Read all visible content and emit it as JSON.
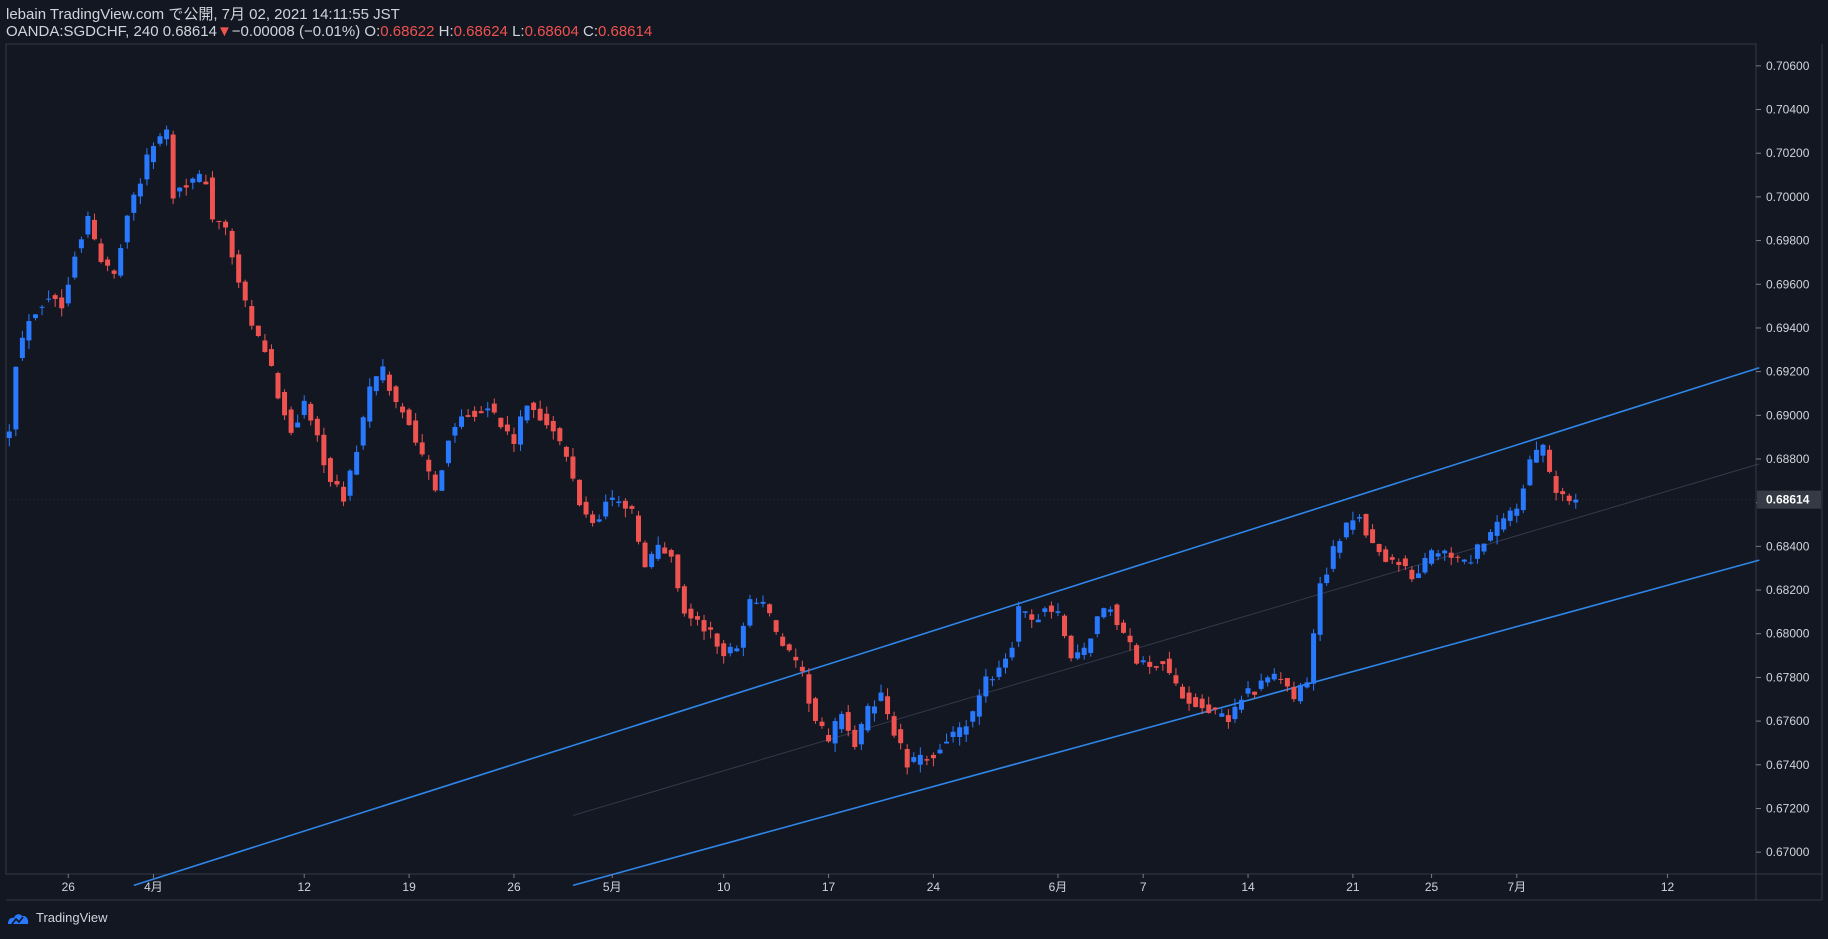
{
  "header": {
    "publisher": "lebain TradingView.com で公開, 7月 02, 2021 14:11:55 JST",
    "symbol_line": "OANDA:SGDCHF, 240 0.68614",
    "change_arrow": "▼",
    "change": "−0.00008 (−0.01%)",
    "o_label": "O:",
    "o_value": "0.68622",
    "h_label": "H:",
    "h_value": "0.68624",
    "l_label": "L:",
    "l_value": "0.68604",
    "c_label": "C:",
    "c_value": "0.68614"
  },
  "footer": {
    "brand": "TradingView"
  },
  "colors": {
    "background": "#131722",
    "up": "#2979ff",
    "down": "#ef5350",
    "channel": "#2f86e8",
    "text": "#d1d4dc",
    "grid_border": "#363a45"
  },
  "chart_data": {
    "type": "candlestick",
    "symbol": "OANDA:SGDCHF",
    "timeframe": "240",
    "ylim": [
      0.669,
      0.707
    ],
    "y_ticks": [
      0.706,
      0.704,
      0.702,
      0.7,
      0.698,
      0.696,
      0.694,
      0.692,
      0.69,
      0.688,
      0.686,
      0.684,
      0.682,
      0.68,
      0.678,
      0.676,
      0.674,
      0.672,
      0.67
    ],
    "y_tick_labels": [
      "0.70600",
      "0.70400",
      "0.70200",
      "0.70000",
      "0.69800",
      "0.69600",
      "0.69400",
      "0.69200",
      "0.69000",
      "0.68800",
      "0.68600",
      "0.68400",
      "0.68200",
      "0.68000",
      "0.67800",
      "0.67600",
      "0.67400",
      "0.67200",
      "0.67000"
    ],
    "last_price_label": "0.68614",
    "last_price": 0.68614,
    "x_ticks": [
      {
        "label": "26",
        "bar": 9
      },
      {
        "label": "4月",
        "bar": 22
      },
      {
        "label": "12",
        "bar": 45
      },
      {
        "label": "19",
        "bar": 61
      },
      {
        "label": "26",
        "bar": 77
      },
      {
        "label": "5月",
        "bar": 92
      },
      {
        "label": "10",
        "bar": 109
      },
      {
        "label": "17",
        "bar": 125
      },
      {
        "label": "24",
        "bar": 141
      },
      {
        "label": "6月",
        "bar": 160
      },
      {
        "label": "7",
        "bar": 173
      },
      {
        "label": "14",
        "bar": 189
      },
      {
        "label": "21",
        "bar": 205
      },
      {
        "label": "25",
        "bar": 217
      },
      {
        "label": "7月",
        "bar": 230
      },
      {
        "label": "12",
        "bar": 253
      }
    ],
    "bars_total": 267,
    "anchors": [
      [
        0,
        0.6895
      ],
      [
        1,
        0.6925
      ],
      [
        3,
        0.6945
      ],
      [
        6,
        0.6955
      ],
      [
        8,
        0.695
      ],
      [
        10,
        0.6975
      ],
      [
        12,
        0.699
      ],
      [
        14,
        0.697
      ],
      [
        16,
        0.6965
      ],
      [
        18,
        0.6993
      ],
      [
        20,
        0.7008
      ],
      [
        22,
        0.7025
      ],
      [
        24,
        0.703
      ],
      [
        25,
        0.7002
      ],
      [
        27,
        0.7007
      ],
      [
        30,
        0.7008
      ],
      [
        31,
        0.699
      ],
      [
        33,
        0.6985
      ],
      [
        35,
        0.696
      ],
      [
        37,
        0.694
      ],
      [
        39,
        0.693
      ],
      [
        41,
        0.691
      ],
      [
        43,
        0.6893
      ],
      [
        45,
        0.6905
      ],
      [
        47,
        0.689
      ],
      [
        49,
        0.687
      ],
      [
        51,
        0.6862
      ],
      [
        53,
        0.6885
      ],
      [
        55,
        0.6912
      ],
      [
        57,
        0.692
      ],
      [
        59,
        0.6905
      ],
      [
        61,
        0.6898
      ],
      [
        63,
        0.688
      ],
      [
        65,
        0.6865
      ],
      [
        67,
        0.689
      ],
      [
        69,
        0.69
      ],
      [
        71,
        0.6902
      ],
      [
        73,
        0.6905
      ],
      [
        75,
        0.6895
      ],
      [
        77,
        0.6888
      ],
      [
        79,
        0.6905
      ],
      [
        81,
        0.69
      ],
      [
        83,
        0.6893
      ],
      [
        85,
        0.688
      ],
      [
        87,
        0.686
      ],
      [
        89,
        0.685
      ],
      [
        91,
        0.686
      ],
      [
        93,
        0.6862
      ],
      [
        95,
        0.6855
      ],
      [
        97,
        0.683
      ],
      [
        99,
        0.684
      ],
      [
        101,
        0.6835
      ],
      [
        103,
        0.681
      ],
      [
        105,
        0.6805
      ],
      [
        107,
        0.68
      ],
      [
        109,
        0.679
      ],
      [
        111,
        0.6795
      ],
      [
        113,
        0.6815
      ],
      [
        115,
        0.6815
      ],
      [
        117,
        0.68
      ],
      [
        119,
        0.679
      ],
      [
        121,
        0.678
      ],
      [
        123,
        0.676
      ],
      [
        125,
        0.675
      ],
      [
        127,
        0.6765
      ],
      [
        129,
        0.6748
      ],
      [
        131,
        0.6765
      ],
      [
        133,
        0.6772
      ],
      [
        135,
        0.6755
      ],
      [
        137,
        0.674
      ],
      [
        139,
        0.6742
      ],
      [
        141,
        0.6745
      ],
      [
        143,
        0.6752
      ],
      [
        145,
        0.6755
      ],
      [
        147,
        0.6762
      ],
      [
        149,
        0.6778
      ],
      [
        151,
        0.6785
      ],
      [
        153,
        0.6795
      ],
      [
        154,
        0.681
      ],
      [
        156,
        0.6805
      ],
      [
        158,
        0.6812
      ],
      [
        160,
        0.6808
      ],
      [
        162,
        0.679
      ],
      [
        164,
        0.6792
      ],
      [
        166,
        0.6808
      ],
      [
        168,
        0.6812
      ],
      [
        170,
        0.68
      ],
      [
        172,
        0.6788
      ],
      [
        174,
        0.6785
      ],
      [
        176,
        0.6788
      ],
      [
        178,
        0.6775
      ],
      [
        180,
        0.677
      ],
      [
        182,
        0.6768
      ],
      [
        184,
        0.6763
      ],
      [
        186,
        0.676
      ],
      [
        188,
        0.6772
      ],
      [
        190,
        0.6775
      ],
      [
        192,
        0.6778
      ],
      [
        194,
        0.678
      ],
      [
        196,
        0.677
      ],
      [
        198,
        0.6778
      ],
      [
        199,
        0.68
      ],
      [
        200,
        0.6822
      ],
      [
        202,
        0.6838
      ],
      [
        204,
        0.6848
      ],
      [
        206,
        0.6855
      ],
      [
        208,
        0.684
      ],
      [
        210,
        0.6835
      ],
      [
        212,
        0.6833
      ],
      [
        214,
        0.6825
      ],
      [
        216,
        0.6833
      ],
      [
        218,
        0.6838
      ],
      [
        220,
        0.6835
      ],
      [
        222,
        0.6832
      ],
      [
        224,
        0.6838
      ],
      [
        226,
        0.6845
      ],
      [
        228,
        0.6852
      ],
      [
        230,
        0.6858
      ],
      [
        232,
        0.6878
      ],
      [
        234,
        0.6885
      ],
      [
        235,
        0.6873
      ],
      [
        236,
        0.6865
      ],
      [
        238,
        0.6861
      ],
      [
        239,
        0.68614
      ]
    ],
    "channel": {
      "upper": [
        {
          "bar": 19,
          "price": 0.66848
        },
        {
          "bar": 267,
          "price": 0.69218
        }
      ],
      "lower": [
        {
          "bar": 86,
          "price": 0.66848
        },
        {
          "bar": 267,
          "price": 0.68337
        }
      ],
      "mid_visible": true
    }
  }
}
